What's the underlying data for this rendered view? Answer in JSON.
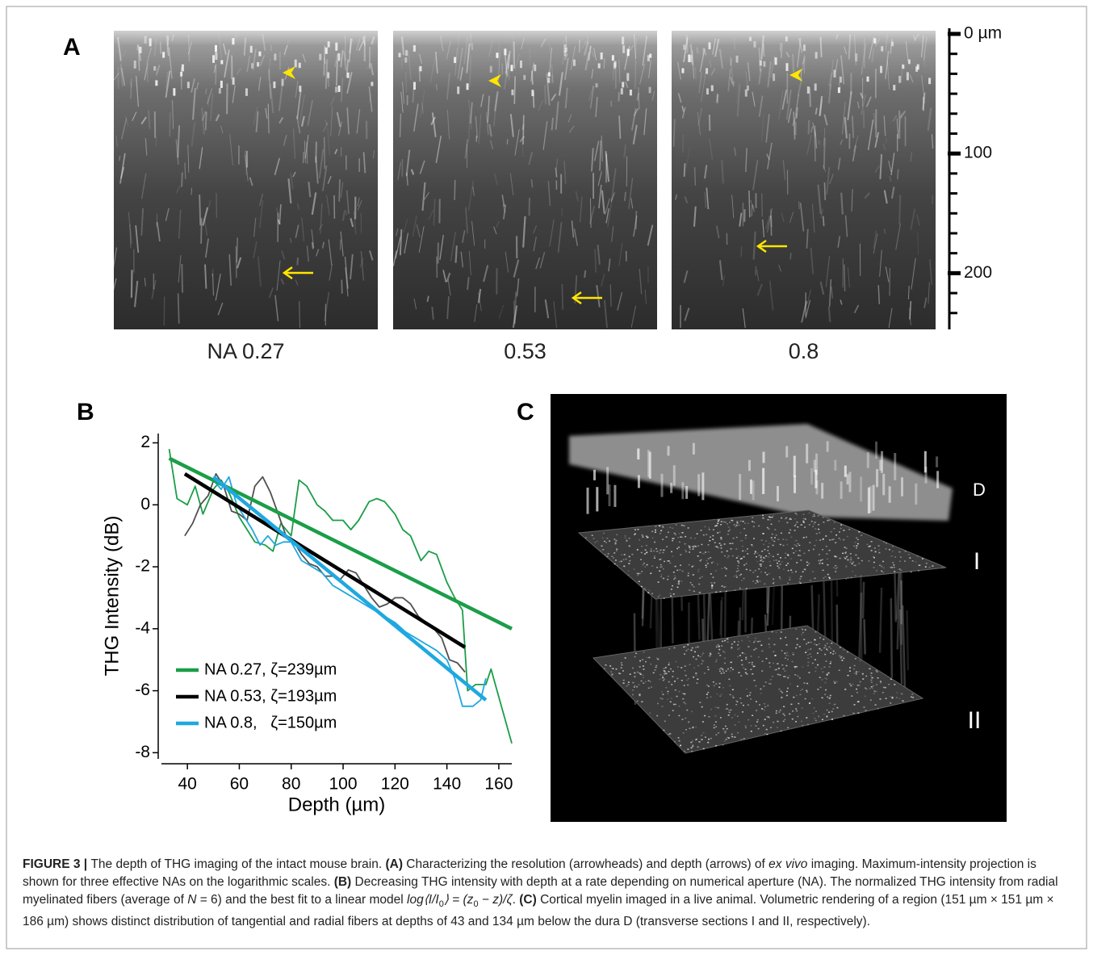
{
  "panel_a": {
    "label": "A",
    "images": [
      {
        "label": "NA 0.27"
      },
      {
        "label": "0.53"
      },
      {
        "label": "0.8"
      }
    ],
    "scale": {
      "lim": [
        0,
        247
      ],
      "ticks": [
        {
          "value": 0,
          "label": "0 µm"
        },
        100,
        200
      ],
      "minor_ticks": [
        16.67,
        33.33,
        50,
        66.67,
        83.33,
        116.67,
        133.33,
        150,
        166.67,
        183.33,
        216.67,
        233.33
      ]
    }
  },
  "chart_data": {
    "type": "line",
    "panel_label": "B",
    "x_label": "Depth (µm)",
    "y_label": "THG Intensity (dB)",
    "xlim": [
      30,
      165
    ],
    "xticks": [
      40,
      60,
      80,
      100,
      120,
      140,
      160
    ],
    "ylim": [
      -8.2,
      2.3
    ],
    "yticks": [
      2,
      0,
      -2,
      -4,
      -6,
      -8
    ],
    "series": [
      {
        "name": "NA 0.27, ζ=239µm",
        "color": "#1a9e48",
        "data_color": "#1a9e48",
        "x": [
          33,
          36,
          40,
          43,
          46,
          50,
          53,
          56,
          60,
          63,
          66,
          70,
          73,
          76,
          80,
          83,
          86,
          90,
          93,
          96,
          100,
          103,
          106,
          110,
          113,
          116,
          120,
          123,
          126,
          130,
          133,
          136,
          140,
          143,
          146,
          148,
          151,
          155,
          157,
          160,
          165
        ],
        "values": [
          1.8,
          0.2,
          0.0,
          0.6,
          -0.3,
          0.5,
          0.8,
          0.4,
          -0.4,
          -0.8,
          -1.2,
          -1.3,
          -1.5,
          -0.6,
          -1.0,
          0.8,
          0.6,
          0.0,
          -0.2,
          -0.5,
          -0.5,
          -0.8,
          -0.5,
          0.1,
          0.2,
          0.1,
          -0.3,
          -0.8,
          -1.0,
          -1.8,
          -1.5,
          -1.6,
          -2.5,
          -3.0,
          -3.4,
          -6.0,
          -5.8,
          -5.8,
          -5.3,
          -6.2,
          -7.7
        ],
        "fit_x": [
          33,
          165
        ],
        "fit_values": [
          1.5,
          -4.0
        ]
      },
      {
        "name": "NA 0.53, ζ=193µm",
        "color": "#000000",
        "data_color": "#505050",
        "x": [
          39,
          42,
          45,
          48,
          51,
          54,
          57,
          60,
          63,
          66,
          69,
          72,
          75,
          78,
          81,
          84,
          87,
          90,
          93,
          96,
          99,
          102,
          105,
          108,
          111,
          114,
          117,
          120,
          123,
          126,
          129,
          132,
          135,
          138,
          141,
          144,
          147
        ],
        "values": [
          -1.0,
          -0.6,
          0.0,
          0.3,
          1.0,
          0.6,
          -0.2,
          -0.3,
          -0.5,
          0.6,
          0.9,
          0.4,
          -0.3,
          -1.0,
          -1.2,
          -1.6,
          -1.9,
          -2.0,
          -2.3,
          -2.3,
          -2.4,
          -2.1,
          -2.2,
          -2.6,
          -3.0,
          -3.3,
          -3.2,
          -3.0,
          -3.0,
          -3.2,
          -3.6,
          -3.8,
          -4.0,
          -4.3,
          -5.0,
          -5.1,
          -5.4
        ],
        "fit_x": [
          39,
          147
        ],
        "fit_values": [
          1.0,
          -4.6
        ]
      },
      {
        "name": "NA 0.8,   ζ=150µm",
        "color": "#1fa8e0",
        "data_color": "#1fa8e0",
        "x": [
          50,
          53,
          56,
          59,
          62,
          65,
          68,
          71,
          74,
          77,
          80,
          84,
          88,
          92,
          96,
          100,
          104,
          108,
          112,
          116,
          120,
          124,
          128,
          132,
          136,
          140,
          143,
          146,
          150,
          153,
          155
        ],
        "values": [
          0.8,
          0.5,
          0.9,
          0.0,
          -0.4,
          -0.8,
          -1.3,
          -1.0,
          -1.3,
          -1.2,
          -1.2,
          -1.8,
          -2.0,
          -2.2,
          -2.6,
          -2.8,
          -3.0,
          -3.2,
          -3.4,
          -3.6,
          -3.8,
          -4.1,
          -4.3,
          -4.5,
          -4.7,
          -5.0,
          -5.6,
          -6.5,
          -6.5,
          -6.3,
          -5.6
        ],
        "fit_x": [
          50,
          155
        ],
        "fit_values": [
          0.9,
          -6.3
        ]
      }
    ]
  },
  "panel_c": {
    "label": "C",
    "annotations": [
      "D",
      "I",
      "II"
    ]
  },
  "caption": {
    "runs": [
      {
        "text": "FIGURE 3 | ",
        "style": "b"
      },
      {
        "text": "The depth of THG imaging of the intact mouse brain. "
      },
      {
        "text": "(A)",
        "style": "b"
      },
      {
        "text": " Characterizing the resolution (arrowheads) and depth (arrows) of "
      },
      {
        "text": "ex vivo",
        "style": "i"
      },
      {
        "text": " imaging. Maximum-intensity projection is shown for three effective NAs on the logarithmic scales. "
      },
      {
        "text": "(B)",
        "style": "b"
      },
      {
        "text": " Decreasing THG intensity with depth at a rate depending on numerical aperture (NA). The normalized THG intensity from radial myelinated fibers (average of "
      },
      {
        "text": "N",
        "style": "i"
      },
      {
        "text": " = 6) and the best fit to a linear model "
      },
      {
        "text": "log⟨I/I",
        "style": "i"
      },
      {
        "text": "0",
        "style": "sub"
      },
      {
        "text": "⟩ = (z",
        "style": "i"
      },
      {
        "text": "0",
        "style": "sub"
      },
      {
        "text": " − z)/ζ",
        "style": "i"
      },
      {
        "text": ". "
      },
      {
        "text": "(C)",
        "style": "b"
      },
      {
        "text": " Cortical myelin imaged in a live animal. Volumetric rendering of a region (151 µm × 151 µm × 186 µm) shows distinct distribution of tangential and radial fibers at depths of 43 and 134 µm below the dura D (transverse sections I and II, respectively)."
      }
    ]
  }
}
